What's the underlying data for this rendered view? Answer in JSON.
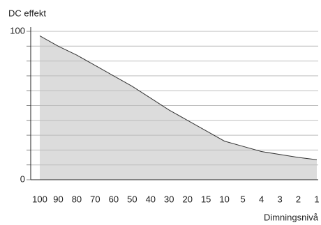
{
  "chart_data": {
    "type": "area",
    "y_label": "DC effekt",
    "x_label": "Dimningsnivå",
    "categories": [
      "100",
      "90",
      "80",
      "70",
      "60",
      "50",
      "40",
      "30",
      "20",
      "15",
      "10",
      "5",
      "4",
      "3",
      "2",
      "1"
    ],
    "values": [
      97,
      90,
      84,
      77,
      70,
      63,
      55,
      47,
      40,
      33,
      26,
      22.5,
      19,
      17,
      15,
      13.5
    ],
    "color": "#dcdcdc",
    "line_color": "#333333",
    "ylim": [
      0,
      100
    ],
    "yticks": [
      0,
      100
    ],
    "minor_yticks": [
      10,
      20,
      30,
      40,
      50,
      60,
      70,
      80,
      90
    ],
    "grid": true
  }
}
